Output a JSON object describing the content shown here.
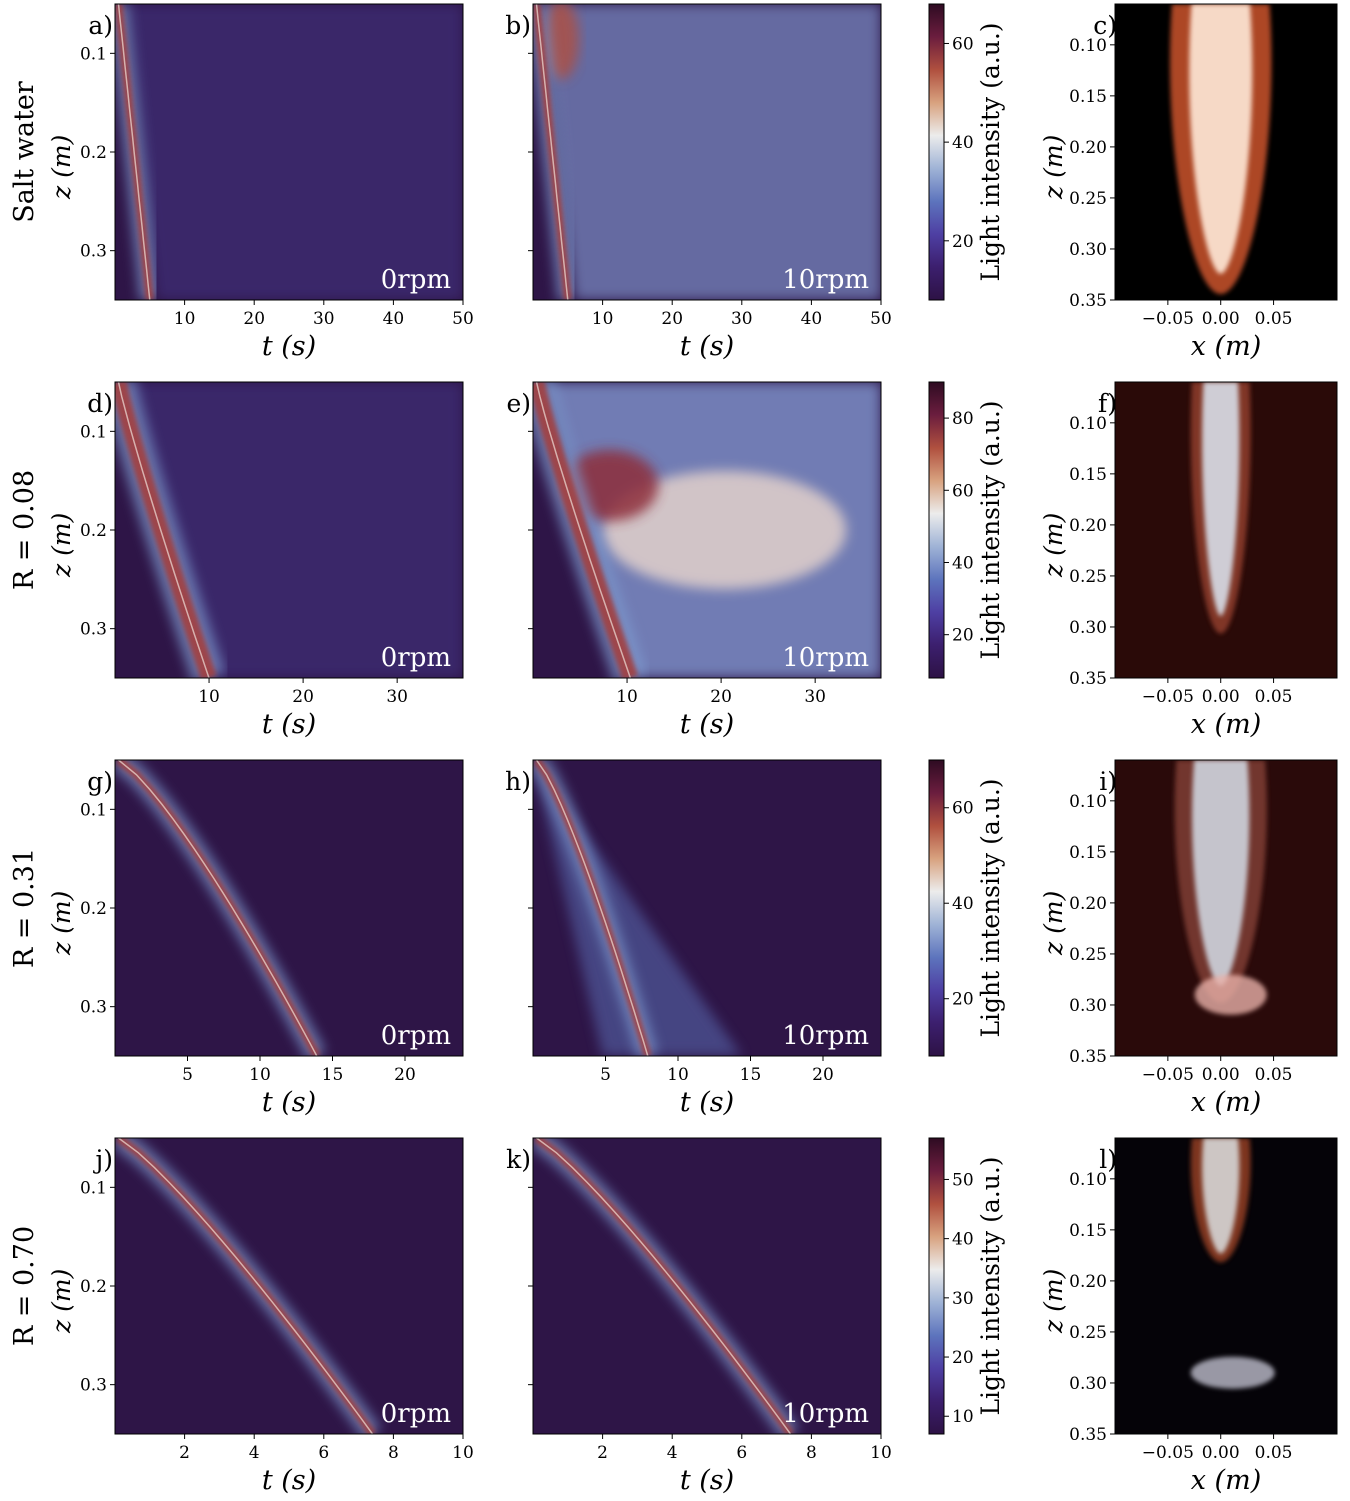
{
  "chart_data": {
    "type": "heatmap",
    "title": "",
    "colormap": [
      "#2d1245",
      "#3c1f6e",
      "#4e3fa3",
      "#5d74bd",
      "#9fb3d6",
      "#ececec",
      "#d8a27f",
      "#b0503f",
      "#6b1d3e",
      "#2e0b22"
    ],
    "rows": [
      {
        "row_label": "Salt water",
        "t_ticks": [
          "10",
          "20",
          "30",
          "40",
          "50"
        ],
        "t_max": 50,
        "z_ticks": [
          "0.1",
          "0.2",
          "0.3"
        ],
        "xlabel": "t (s)",
        "ylabel": "z (m)",
        "colorbar_label": "Light intensity (a.u.)",
        "colorbar_ticks": [
          "20",
          "40",
          "60"
        ],
        "colorbar_range": [
          8,
          68
        ],
        "left_panel": {
          "label": "a)",
          "rpm": "0rpm"
        },
        "mid_panel": {
          "label": "b)",
          "rpm": "10rpm"
        },
        "right_panel": {
          "label": "c)",
          "x_ticks": [
            "−0.05",
            "0.00",
            "0.05"
          ],
          "z_ticks": [
            "0.10",
            "0.15",
            "0.20",
            "0.25",
            "0.30",
            "0.35"
          ],
          "xlabel": "x (m)",
          "ylabel": "z (m)",
          "x_range": [
            -0.1,
            0.11
          ],
          "bg": "#000000"
        }
      },
      {
        "row_label": "R = 0.08",
        "t_ticks": [
          "10",
          "20",
          "30"
        ],
        "t_max": 37,
        "z_ticks": [
          "0.1",
          "0.2",
          "0.3"
        ],
        "xlabel": "t (s)",
        "ylabel": "z (m)",
        "colorbar_label": "Light intensity (a.u.)",
        "colorbar_ticks": [
          "20",
          "40",
          "60",
          "80"
        ],
        "colorbar_range": [
          8,
          90
        ],
        "left_panel": {
          "label": "d)",
          "rpm": "0rpm"
        },
        "mid_panel": {
          "label": "e)",
          "rpm": "10rpm"
        },
        "right_panel": {
          "label": "f)",
          "x_ticks": [
            "−0.05",
            "0.00",
            "0.05"
          ],
          "z_ticks": [
            "0.10",
            "0.15",
            "0.20",
            "0.25",
            "0.30",
            "0.35"
          ],
          "xlabel": "x (m)",
          "ylabel": "z (m)",
          "x_range": [
            -0.1,
            0.11
          ],
          "bg": "#2a0a08"
        }
      },
      {
        "row_label": "R = 0.31",
        "t_ticks": [
          "5",
          "10",
          "15",
          "20"
        ],
        "t_max": 24,
        "z_ticks": [
          "0.1",
          "0.2",
          "0.3"
        ],
        "xlabel": "t (s)",
        "ylabel": "z (m)",
        "colorbar_label": "Light intensity (a.u.)",
        "colorbar_ticks": [
          "20",
          "40",
          "60"
        ],
        "colorbar_range": [
          8,
          70
        ],
        "left_panel": {
          "label": "g)",
          "rpm": "0rpm"
        },
        "mid_panel": {
          "label": "h)",
          "rpm": "10rpm"
        },
        "right_panel": {
          "label": "i)",
          "x_ticks": [
            "−0.05",
            "0.00",
            "0.05"
          ],
          "z_ticks": [
            "0.10",
            "0.15",
            "0.20",
            "0.25",
            "0.30",
            "0.35"
          ],
          "xlabel": "x (m)",
          "ylabel": "z (m)",
          "x_range": [
            -0.1,
            0.11
          ],
          "bg": "#2a0a0a"
        }
      },
      {
        "row_label": "R = 0.70",
        "t_ticks": [
          "2",
          "4",
          "6",
          "8",
          "10"
        ],
        "t_max": 10,
        "z_ticks": [
          "0.1",
          "0.2",
          "0.3"
        ],
        "xlabel": "t (s)",
        "ylabel": "z (m)",
        "colorbar_label": "Light intensity (a.u.)",
        "colorbar_ticks": [
          "10",
          "20",
          "30",
          "40",
          "50"
        ],
        "colorbar_range": [
          7,
          57
        ],
        "left_panel": {
          "label": "j)",
          "rpm": "0rpm"
        },
        "mid_panel": {
          "label": "k)",
          "rpm": "10rpm"
        },
        "right_panel": {
          "label": "l)",
          "x_ticks": [
            "−0.05",
            "0.00",
            "0.05"
          ],
          "z_ticks": [
            "0.10",
            "0.15",
            "0.20",
            "0.25",
            "0.30",
            "0.35"
          ],
          "xlabel": "x (m)",
          "ylabel": "z (m)",
          "x_range": [
            -0.1,
            0.11
          ],
          "bg": "#050308"
        }
      }
    ],
    "z_range": [
      0.05,
      0.35
    ],
    "z_range_right": [
      0.06,
      0.35
    ]
  }
}
